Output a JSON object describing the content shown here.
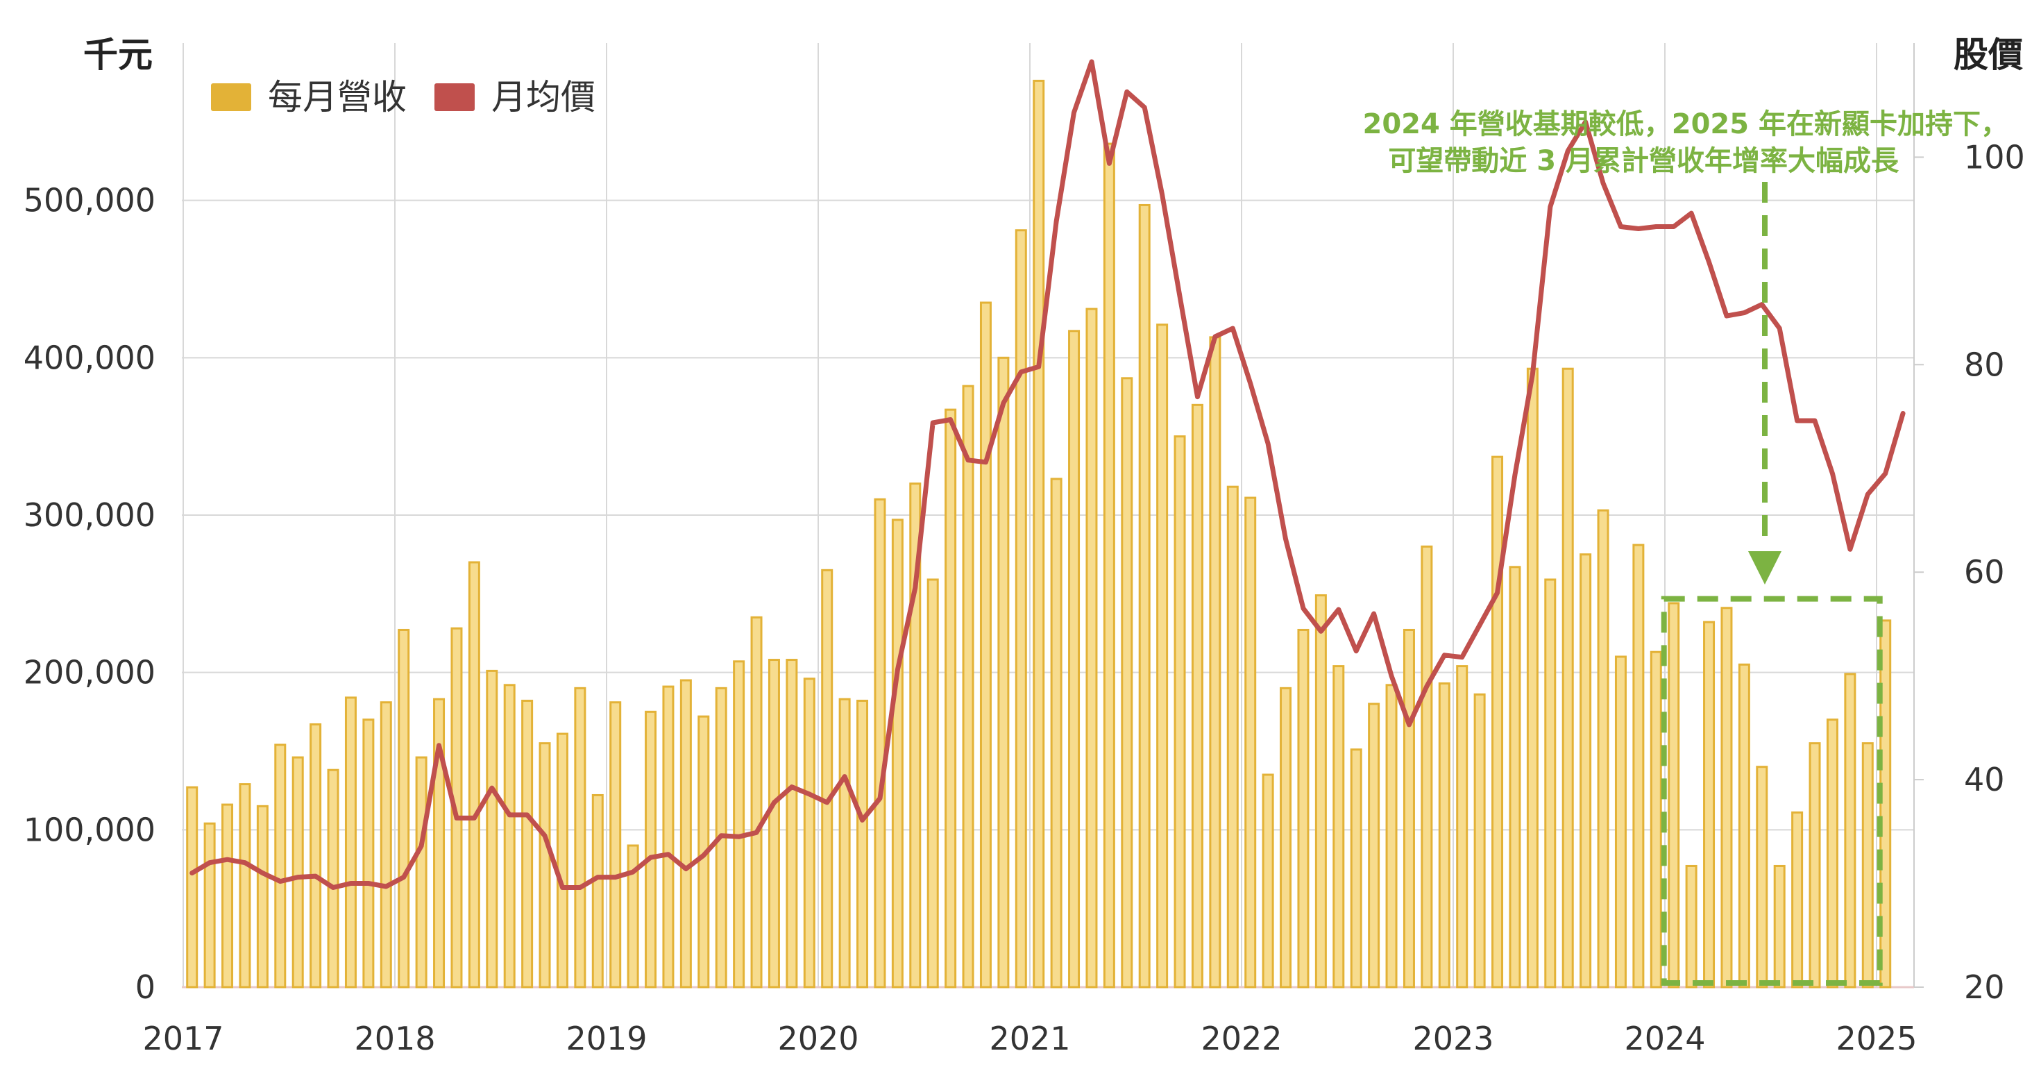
{
  "chart_data": {
    "type": "bar",
    "title": "",
    "y_left_label": "千元",
    "y_right_label": "股價",
    "y_left_ticks": [
      0,
      100000,
      200000,
      300000,
      400000,
      500000
    ],
    "y_left_tick_labels": [
      "0",
      "100,000",
      "200,000",
      "300,000",
      "400,000",
      "500,000"
    ],
    "y_left_range": [
      0,
      600000
    ],
    "y_right_ticks": [
      20,
      40,
      60,
      80,
      100
    ],
    "y_right_range": [
      20,
      111
    ],
    "x_tick_labels": [
      "2017",
      "2018",
      "2019",
      "2020",
      "2021",
      "2022",
      "2023",
      "2024",
      "2025"
    ],
    "grid": true,
    "legend": {
      "position": "top-left",
      "entries": [
        {
          "label": "每月營收",
          "color": "#e3b237"
        },
        {
          "label": "月均價",
          "color": "#c0504d"
        }
      ]
    },
    "colors": {
      "bar_fill": "#f7dc8e",
      "bar_stroke": "#e3b237",
      "line": "#c0504d",
      "annotation": "#7cb342"
    },
    "series": [
      {
        "name": "每月營收",
        "axis": "left",
        "type": "bar",
        "start_month": "2017-01",
        "values": [
          127000,
          104000,
          116000,
          129000,
          115000,
          154000,
          146000,
          167000,
          138000,
          184000,
          170000,
          181000,
          227000,
          146000,
          183000,
          228000,
          270000,
          201000,
          192000,
          182000,
          155000,
          161000,
          190000,
          122000,
          181000,
          90000,
          175000,
          191000,
          195000,
          172000,
          190000,
          207000,
          235000,
          208000,
          208000,
          196000,
          265000,
          183000,
          182000,
          310000,
          297000,
          320000,
          259000,
          367000,
          382000,
          435000,
          400000,
          481000,
          576000,
          323000,
          417000,
          431000,
          536000,
          387000,
          497000,
          421000,
          350000,
          370000,
          413000,
          318000,
          311000,
          135000,
          190000,
          227000,
          249000,
          204000,
          151000,
          180000,
          192000,
          227000,
          280000,
          193000,
          204000,
          186000,
          337000,
          267000,
          393000,
          259000,
          393000,
          275000,
          303000,
          210000,
          281000,
          213000,
          244000,
          77000,
          232000,
          241000,
          205000,
          140000,
          77000,
          111000,
          155000,
          170000,
          199000,
          155000,
          233000
        ]
      },
      {
        "name": "月均價",
        "axis": "right",
        "type": "line",
        "start_month": "2017-01",
        "values": [
          31,
          32,
          32.3,
          32,
          31,
          30.2,
          30.6,
          30.7,
          29.6,
          30,
          30,
          29.7,
          30.6,
          33.6,
          43.3,
          36.3,
          36.3,
          39.2,
          36.6,
          36.6,
          34.6,
          29.6,
          29.6,
          30.6,
          30.6,
          31.1,
          32.5,
          32.8,
          31.4,
          32.7,
          34.6,
          34.5,
          34.9,
          37.8,
          39.3,
          38.6,
          37.8,
          40.3,
          36.1,
          38.2,
          50.6,
          58.5,
          74.4,
          74.7,
          70.8,
          70.6,
          76.3,
          79.3,
          79.8,
          93.8,
          104.3,
          109.2,
          99.4,
          106.3,
          104.8,
          96.4,
          86.6,
          76.9,
          82.7,
          83.5,
          78.2,
          72.4,
          63.2,
          56.5,
          54.3,
          56.4,
          52.4,
          56,
          50,
          45.3,
          49,
          52,
          51.8,
          54.9,
          58,
          69.4,
          79.1,
          95.2,
          100.6,
          103.4,
          97.5,
          93.3,
          93.1,
          93.3,
          93.3,
          94.6,
          89.9,
          84.7,
          85,
          85.8,
          83.5,
          74.6,
          74.6,
          69.5,
          62.2,
          67.5,
          69.5,
          75.3
        ]
      }
    ],
    "annotation": {
      "lines": [
        "2024 年營收基期較低，2025 年在新顯卡加持下，",
        "可望帶動近 3 月累計營收年增率大幅成長"
      ]
    }
  }
}
